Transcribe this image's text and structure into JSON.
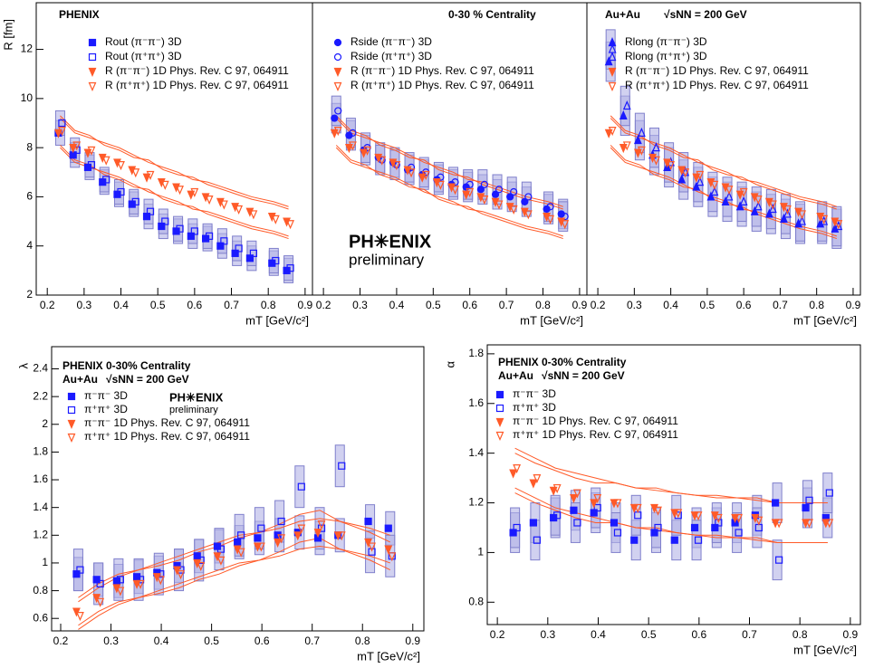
{
  "chart_data": [
    {
      "type": "scatter",
      "annotations": [
        "PHENIX"
      ],
      "xlabel": "mT [GeV/c²]",
      "ylabel": "R [fm]",
      "xlim": [
        0.17,
        0.92
      ],
      "ylim": [
        2,
        13.9
      ],
      "xticks": [
        0.2,
        0.3,
        0.4,
        0.5,
        0.6,
        0.7,
        0.8,
        0.9
      ],
      "yticks": [
        2,
        4,
        6,
        8,
        10,
        12
      ],
      "x": [
        0.235,
        0.275,
        0.315,
        0.355,
        0.395,
        0.435,
        0.475,
        0.515,
        0.555,
        0.595,
        0.635,
        0.675,
        0.715,
        0.755,
        0.815,
        0.855
      ],
      "series": [
        {
          "name": "Rout (π⁻π⁻) 3D",
          "color": "#1a1aff",
          "marker": "square",
          "filled": true,
          "sys": 0.5,
          "values": [
            8.6,
            7.7,
            7.2,
            6.6,
            6.1,
            5.7,
            5.2,
            4.8,
            4.6,
            4.4,
            4.3,
            4.0,
            3.7,
            3.5,
            3.3,
            3.0
          ]
        },
        {
          "name": "Rout (π⁺π⁺) 3D",
          "color": "#1a1aff",
          "marker": "square",
          "filled": false,
          "sys": 0.5,
          "values": [
            9.0,
            7.9,
            7.3,
            6.7,
            6.2,
            5.8,
            5.4,
            5.0,
            4.7,
            4.6,
            4.4,
            4.2,
            3.9,
            3.7,
            3.4,
            3.1
          ]
        },
        {
          "name": "R (π⁻π⁻) 1D Phys. Rev. C 97, 064911",
          "color": "#ff5a28",
          "marker": "triangle-down",
          "filled": true,
          "sys": 0.6,
          "values": [
            8.6,
            8.0,
            7.8,
            7.6,
            7.4,
            7.1,
            6.8,
            6.6,
            6.4,
            6.1,
            6.0,
            5.8,
            5.6,
            5.4,
            5.2,
            5.0
          ]
        },
        {
          "name": "R (π⁺π⁺) 1D Phys. Rev. C 97, 064911",
          "color": "#ff5a28",
          "marker": "triangle-down",
          "filled": false,
          "sys": 0.6,
          "values": [
            8.7,
            8.1,
            7.9,
            7.5,
            7.3,
            7.0,
            6.9,
            6.5,
            6.3,
            6.2,
            5.9,
            5.7,
            5.5,
            5.3,
            5.1,
            4.9
          ]
        }
      ]
    },
    {
      "type": "scatter",
      "annotations": [
        "0-30 % Centrality",
        "PH✳ENIX",
        "preliminary"
      ],
      "xlabel": "mT [GeV/c²]",
      "xlim": [
        0.17,
        0.92
      ],
      "ylim": [
        2,
        13.9
      ],
      "xticks": [
        0.2,
        0.3,
        0.4,
        0.5,
        0.6,
        0.7,
        0.8,
        0.9
      ],
      "x": [
        0.235,
        0.275,
        0.315,
        0.355,
        0.395,
        0.435,
        0.475,
        0.515,
        0.555,
        0.595,
        0.635,
        0.675,
        0.715,
        0.755,
        0.815,
        0.855
      ],
      "series": [
        {
          "name": "Rside (π⁻π⁻) 3D",
          "color": "#1a1aff",
          "marker": "circle",
          "filled": true,
          "sys": 0.6,
          "values": [
            9.2,
            8.5,
            7.9,
            7.6,
            7.4,
            7.1,
            6.9,
            6.7,
            6.5,
            6.4,
            6.3,
            6.1,
            6.0,
            5.8,
            5.5,
            5.3
          ]
        },
        {
          "name": "Rside (π⁺π⁺) 3D",
          "color": "#1a1aff",
          "marker": "circle",
          "filled": false,
          "sys": 0.6,
          "values": [
            9.5,
            8.6,
            8.0,
            7.5,
            7.3,
            7.2,
            7.0,
            6.8,
            6.6,
            6.5,
            6.5,
            6.3,
            6.2,
            6.0,
            5.6,
            5.2
          ]
        },
        {
          "name": "R (π⁻π⁻) 1D Phys. Rev. C 97, 064911",
          "color": "#ff5a28",
          "marker": "triangle-down",
          "filled": true,
          "sys": 0.6,
          "values": [
            8.6,
            8.0,
            7.8,
            7.6,
            7.4,
            7.1,
            6.8,
            6.6,
            6.4,
            6.1,
            6.0,
            5.8,
            5.6,
            5.4,
            5.2,
            5.0
          ]
        },
        {
          "name": "R (π⁺π⁺) 1D Phys. Rev. C 97, 064911",
          "color": "#ff5a28",
          "marker": "triangle-down",
          "filled": false,
          "sys": 0.6,
          "values": [
            8.7,
            8.1,
            7.9,
            7.5,
            7.3,
            7.0,
            6.9,
            6.5,
            6.3,
            6.2,
            5.9,
            5.7,
            5.5,
            5.3,
            5.1,
            4.9
          ]
        }
      ]
    },
    {
      "type": "scatter",
      "annotations": [
        "Au+Au",
        "√sNN = 200 GeV"
      ],
      "xlabel": "mT [GeV/c²]",
      "xlim": [
        0.17,
        0.92
      ],
      "ylim": [
        2,
        13.9
      ],
      "xticks": [
        0.2,
        0.3,
        0.4,
        0.5,
        0.6,
        0.7,
        0.8,
        0.9
      ],
      "x": [
        0.235,
        0.275,
        0.315,
        0.355,
        0.395,
        0.435,
        0.475,
        0.515,
        0.555,
        0.595,
        0.635,
        0.675,
        0.715,
        0.755,
        0.815,
        0.855
      ],
      "series": [
        {
          "name": "Rlong (π⁻π⁻) 3D",
          "color": "#1a1aff",
          "marker": "triangle-up",
          "filled": true,
          "sys": 0.8,
          "values": [
            11.5,
            9.3,
            8.3,
            7.7,
            7.2,
            6.7,
            6.4,
            6.0,
            5.8,
            5.6,
            5.4,
            5.3,
            5.1,
            4.9,
            4.9,
            4.7
          ]
        },
        {
          "name": "Rlong (π⁺π⁺) 3D",
          "color": "#1a1aff",
          "marker": "triangle-up",
          "filled": false,
          "sys": 0.8,
          "values": [
            12.0,
            9.7,
            8.6,
            8.0,
            7.4,
            7.0,
            6.6,
            6.2,
            6.0,
            5.8,
            5.6,
            5.5,
            5.3,
            5.0,
            5.0,
            4.8
          ]
        },
        {
          "name": "R (π⁻π⁻) 1D Phys. Rev. C 97, 064911",
          "color": "#ff5a28",
          "marker": "triangle-down",
          "filled": true,
          "sys": 0.6,
          "values": [
            8.6,
            8.0,
            7.8,
            7.6,
            7.4,
            7.1,
            6.8,
            6.6,
            6.4,
            6.1,
            6.0,
            5.8,
            5.6,
            5.4,
            5.2,
            5.0
          ]
        },
        {
          "name": "R (π⁺π⁺) 1D Phys. Rev. C 97, 064911",
          "color": "#ff5a28",
          "marker": "triangle-down",
          "filled": false,
          "sys": 0.6,
          "values": [
            8.7,
            8.1,
            7.9,
            7.5,
            7.3,
            7.0,
            6.9,
            6.5,
            6.3,
            6.2,
            5.9,
            5.7,
            5.5,
            5.3,
            5.1,
            4.9
          ]
        }
      ]
    },
    {
      "type": "scatter",
      "annotations": [
        "PHENIX 0-30% Centrality",
        "Au+Au",
        "√sNN = 200 GeV",
        "PH✳ENIX",
        "preliminary"
      ],
      "xlabel": "mT [GeV/c²]",
      "ylabel": "λ",
      "xlim": [
        0.182,
        0.922
      ],
      "ylim": [
        0.51,
        2.56
      ],
      "xticks": [
        0.2,
        0.3,
        0.4,
        0.5,
        0.6,
        0.7,
        0.8,
        0.9
      ],
      "yticks": [
        0.6,
        0.8,
        1,
        1.2,
        1.4,
        1.6,
        1.8,
        2,
        2.2,
        2.4
      ],
      "x": [
        0.235,
        0.275,
        0.315,
        0.355,
        0.395,
        0.435,
        0.475,
        0.515,
        0.555,
        0.595,
        0.635,
        0.675,
        0.715,
        0.755,
        0.815,
        0.855
      ],
      "series": [
        {
          "name": "π⁻π⁻ 3D",
          "color": "#1a1aff",
          "marker": "square",
          "filled": true,
          "sys": 0.12,
          "values": [
            0.92,
            0.88,
            0.87,
            0.9,
            0.93,
            0.98,
            1.05,
            1.12,
            1.15,
            1.18,
            1.2,
            1.22,
            1.18,
            1.2,
            1.3,
            1.25
          ]
        },
        {
          "name": "π⁺π⁺ 3D",
          "color": "#1a1aff",
          "marker": "square",
          "filled": false,
          "sys": 0.15,
          "values": [
            0.95,
            0.85,
            0.88,
            0.88,
            0.92,
            0.95,
            1.02,
            1.1,
            1.2,
            1.25,
            1.3,
            1.55,
            1.25,
            1.7,
            1.08,
            1.05
          ]
        },
        {
          "name": "π⁻π⁻ 1D Phys. Rev. C 97, 064911",
          "color": "#ff5a28",
          "marker": "triangle-down",
          "filled": true,
          "sys": 0.1,
          "values": [
            0.65,
            0.75,
            0.82,
            0.85,
            0.9,
            0.95,
            1.0,
            1.05,
            1.1,
            1.12,
            1.15,
            1.2,
            1.22,
            1.2,
            1.15,
            1.1
          ]
        },
        {
          "name": "π⁺π⁺ 1D Phys. Rev. C 97, 064911",
          "color": "#ff5a28",
          "marker": "triangle-down",
          "filled": false,
          "sys": 0.1,
          "values": [
            0.62,
            0.72,
            0.8,
            0.85,
            0.88,
            0.92,
            0.98,
            1.02,
            1.08,
            1.12,
            1.18,
            1.25,
            1.28,
            1.2,
            1.12,
            1.05
          ]
        }
      ]
    },
    {
      "type": "scatter",
      "annotations": [
        "PHENIX 0-30% Centrality",
        "Au+Au",
        "√sNN = 200 GeV"
      ],
      "xlabel": "mT [GeV/c²]",
      "ylabel": "α",
      "xlim": [
        0.18,
        0.92
      ],
      "ylim": [
        0.71,
        1.836
      ],
      "xticks": [
        0.2,
        0.3,
        0.4,
        0.5,
        0.6,
        0.7,
        0.8,
        0.9
      ],
      "yticks": [
        0.8,
        1,
        1.2,
        1.4,
        1.6,
        1.8
      ],
      "x": [
        0.235,
        0.275,
        0.315,
        0.355,
        0.395,
        0.435,
        0.475,
        0.515,
        0.555,
        0.595,
        0.635,
        0.675,
        0.715,
        0.755,
        0.815,
        0.855
      ],
      "series": [
        {
          "name": "π⁻π⁻ 3D",
          "color": "#1a1aff",
          "marker": "square",
          "filled": true,
          "sys": 0.08,
          "values": [
            1.08,
            1.12,
            1.14,
            1.17,
            1.16,
            1.12,
            1.05,
            1.08,
            1.05,
            1.1,
            1.1,
            1.12,
            1.15,
            1.2,
            1.18,
            1.14
          ]
        },
        {
          "name": "π⁺π⁺ 3D",
          "color": "#1a1aff",
          "marker": "square",
          "filled": false,
          "sys": 0.08,
          "values": [
            1.1,
            1.05,
            1.15,
            1.12,
            1.18,
            1.08,
            1.15,
            1.1,
            1.15,
            1.05,
            1.12,
            1.08,
            1.1,
            0.97,
            1.21,
            1.24
          ]
        },
        {
          "name": "π⁻π⁻ 1D Phys. Rev. C 97, 064911",
          "color": "#ff5a28",
          "marker": "triangle-down",
          "filled": true,
          "sys": 0.08,
          "values": [
            1.32,
            1.28,
            1.25,
            1.22,
            1.2,
            1.2,
            1.18,
            1.18,
            1.16,
            1.15,
            1.15,
            1.14,
            1.14,
            1.12,
            1.12,
            1.12
          ]
        },
        {
          "name": "π⁺π⁺ 1D Phys. Rev. C 97, 064911",
          "color": "#ff5a28",
          "marker": "triangle-down",
          "filled": false,
          "sys": 0.08,
          "values": [
            1.34,
            1.3,
            1.26,
            1.24,
            1.22,
            1.2,
            1.18,
            1.17,
            1.16,
            1.15,
            1.14,
            1.14,
            1.13,
            1.12,
            1.12,
            1.12
          ]
        }
      ]
    }
  ]
}
